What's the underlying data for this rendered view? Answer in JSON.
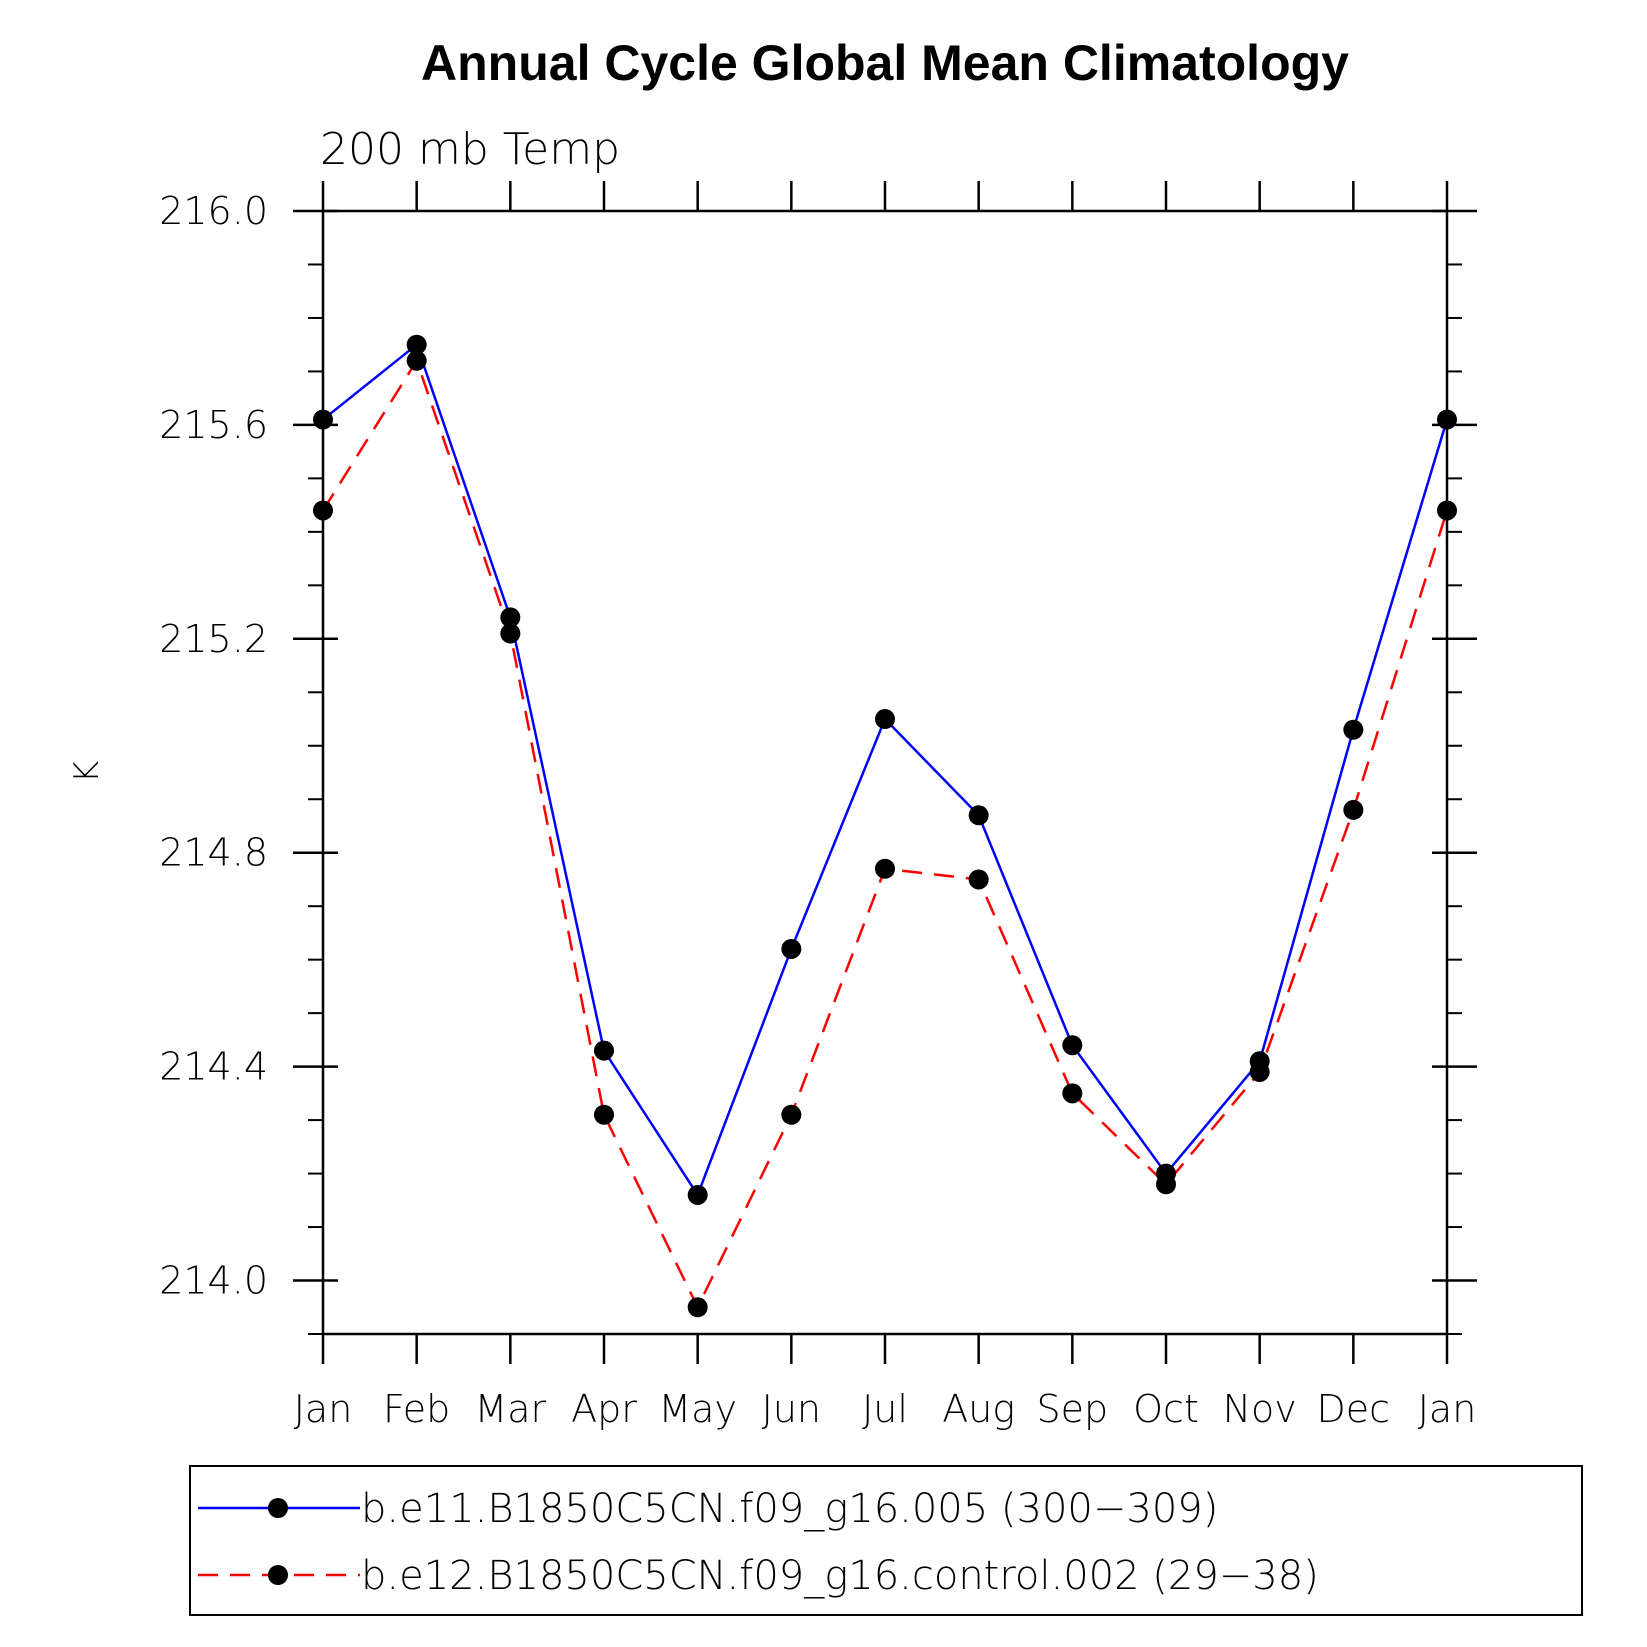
{
  "chart_data": {
    "type": "line",
    "title": "Annual Cycle Global Mean Climatology",
    "subtitle": "200 mb Temp",
    "xlabel": "",
    "ylabel": "K",
    "categories": [
      "Jan",
      "Feb",
      "Mar",
      "Apr",
      "May",
      "Jun",
      "Jul",
      "Aug",
      "Sep",
      "Oct",
      "Nov",
      "Dec",
      "Jan"
    ],
    "ylim": [
      213.9,
      216.0
    ],
    "yticks": [
      "214.0",
      "214.4",
      "214.8",
      "215.2",
      "215.6",
      "216.0"
    ],
    "ytick_values": [
      214.0,
      214.4,
      214.8,
      215.2,
      215.6,
      216.0
    ],
    "yminor_step": 0.1,
    "legend_position": "bottom",
    "series": [
      {
        "name": "b.e11.B1850C5CN.f09_g16.005 (300−309)",
        "color": "#0000ff",
        "style": "solid",
        "marker": "filled-circle",
        "values": [
          215.61,
          215.75,
          215.24,
          214.43,
          214.16,
          214.62,
          215.05,
          214.87,
          214.44,
          214.2,
          214.41,
          215.03,
          215.61
        ]
      },
      {
        "name": "b.e12.B1850C5CN.f09_g16.control.002 (29−38)",
        "color": "#ff0000",
        "style": "dashed",
        "marker": "filled-circle",
        "values": [
          215.44,
          215.72,
          215.21,
          214.31,
          213.95,
          214.31,
          214.77,
          214.75,
          214.35,
          214.18,
          214.39,
          214.88,
          215.44
        ]
      }
    ]
  }
}
